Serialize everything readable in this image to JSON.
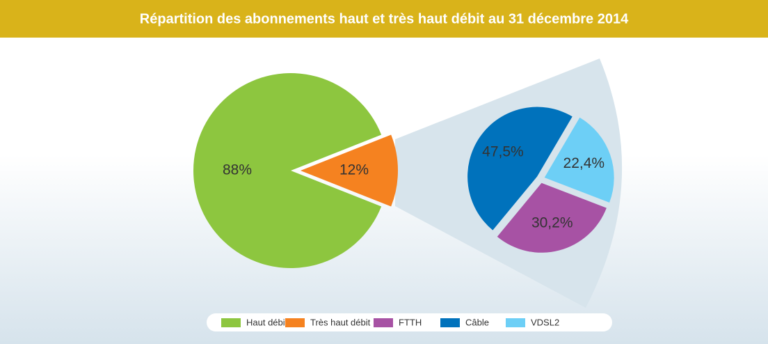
{
  "chart_data": {
    "type": "pie-of-pie",
    "title": "Répartition des abonnements haut et très haut débit au 31 décembre 2014",
    "categories": [
      "Haut débit",
      "Très haut débit"
    ],
    "values": [
      88,
      12
    ],
    "value_labels": [
      "88%",
      "12%"
    ],
    "colors": [
      "#8dc63f",
      "#f58220"
    ],
    "subpie": {
      "categories": [
        "FTTH",
        "Câble",
        "VDSL2"
      ],
      "values": [
        30.2,
        47.5,
        22.4
      ],
      "value_labels": [
        "30,2%",
        "47,5%",
        "22,4%"
      ],
      "colors": [
        "#a752a4",
        "#0072bc",
        "#6dcff6"
      ]
    }
  }
}
